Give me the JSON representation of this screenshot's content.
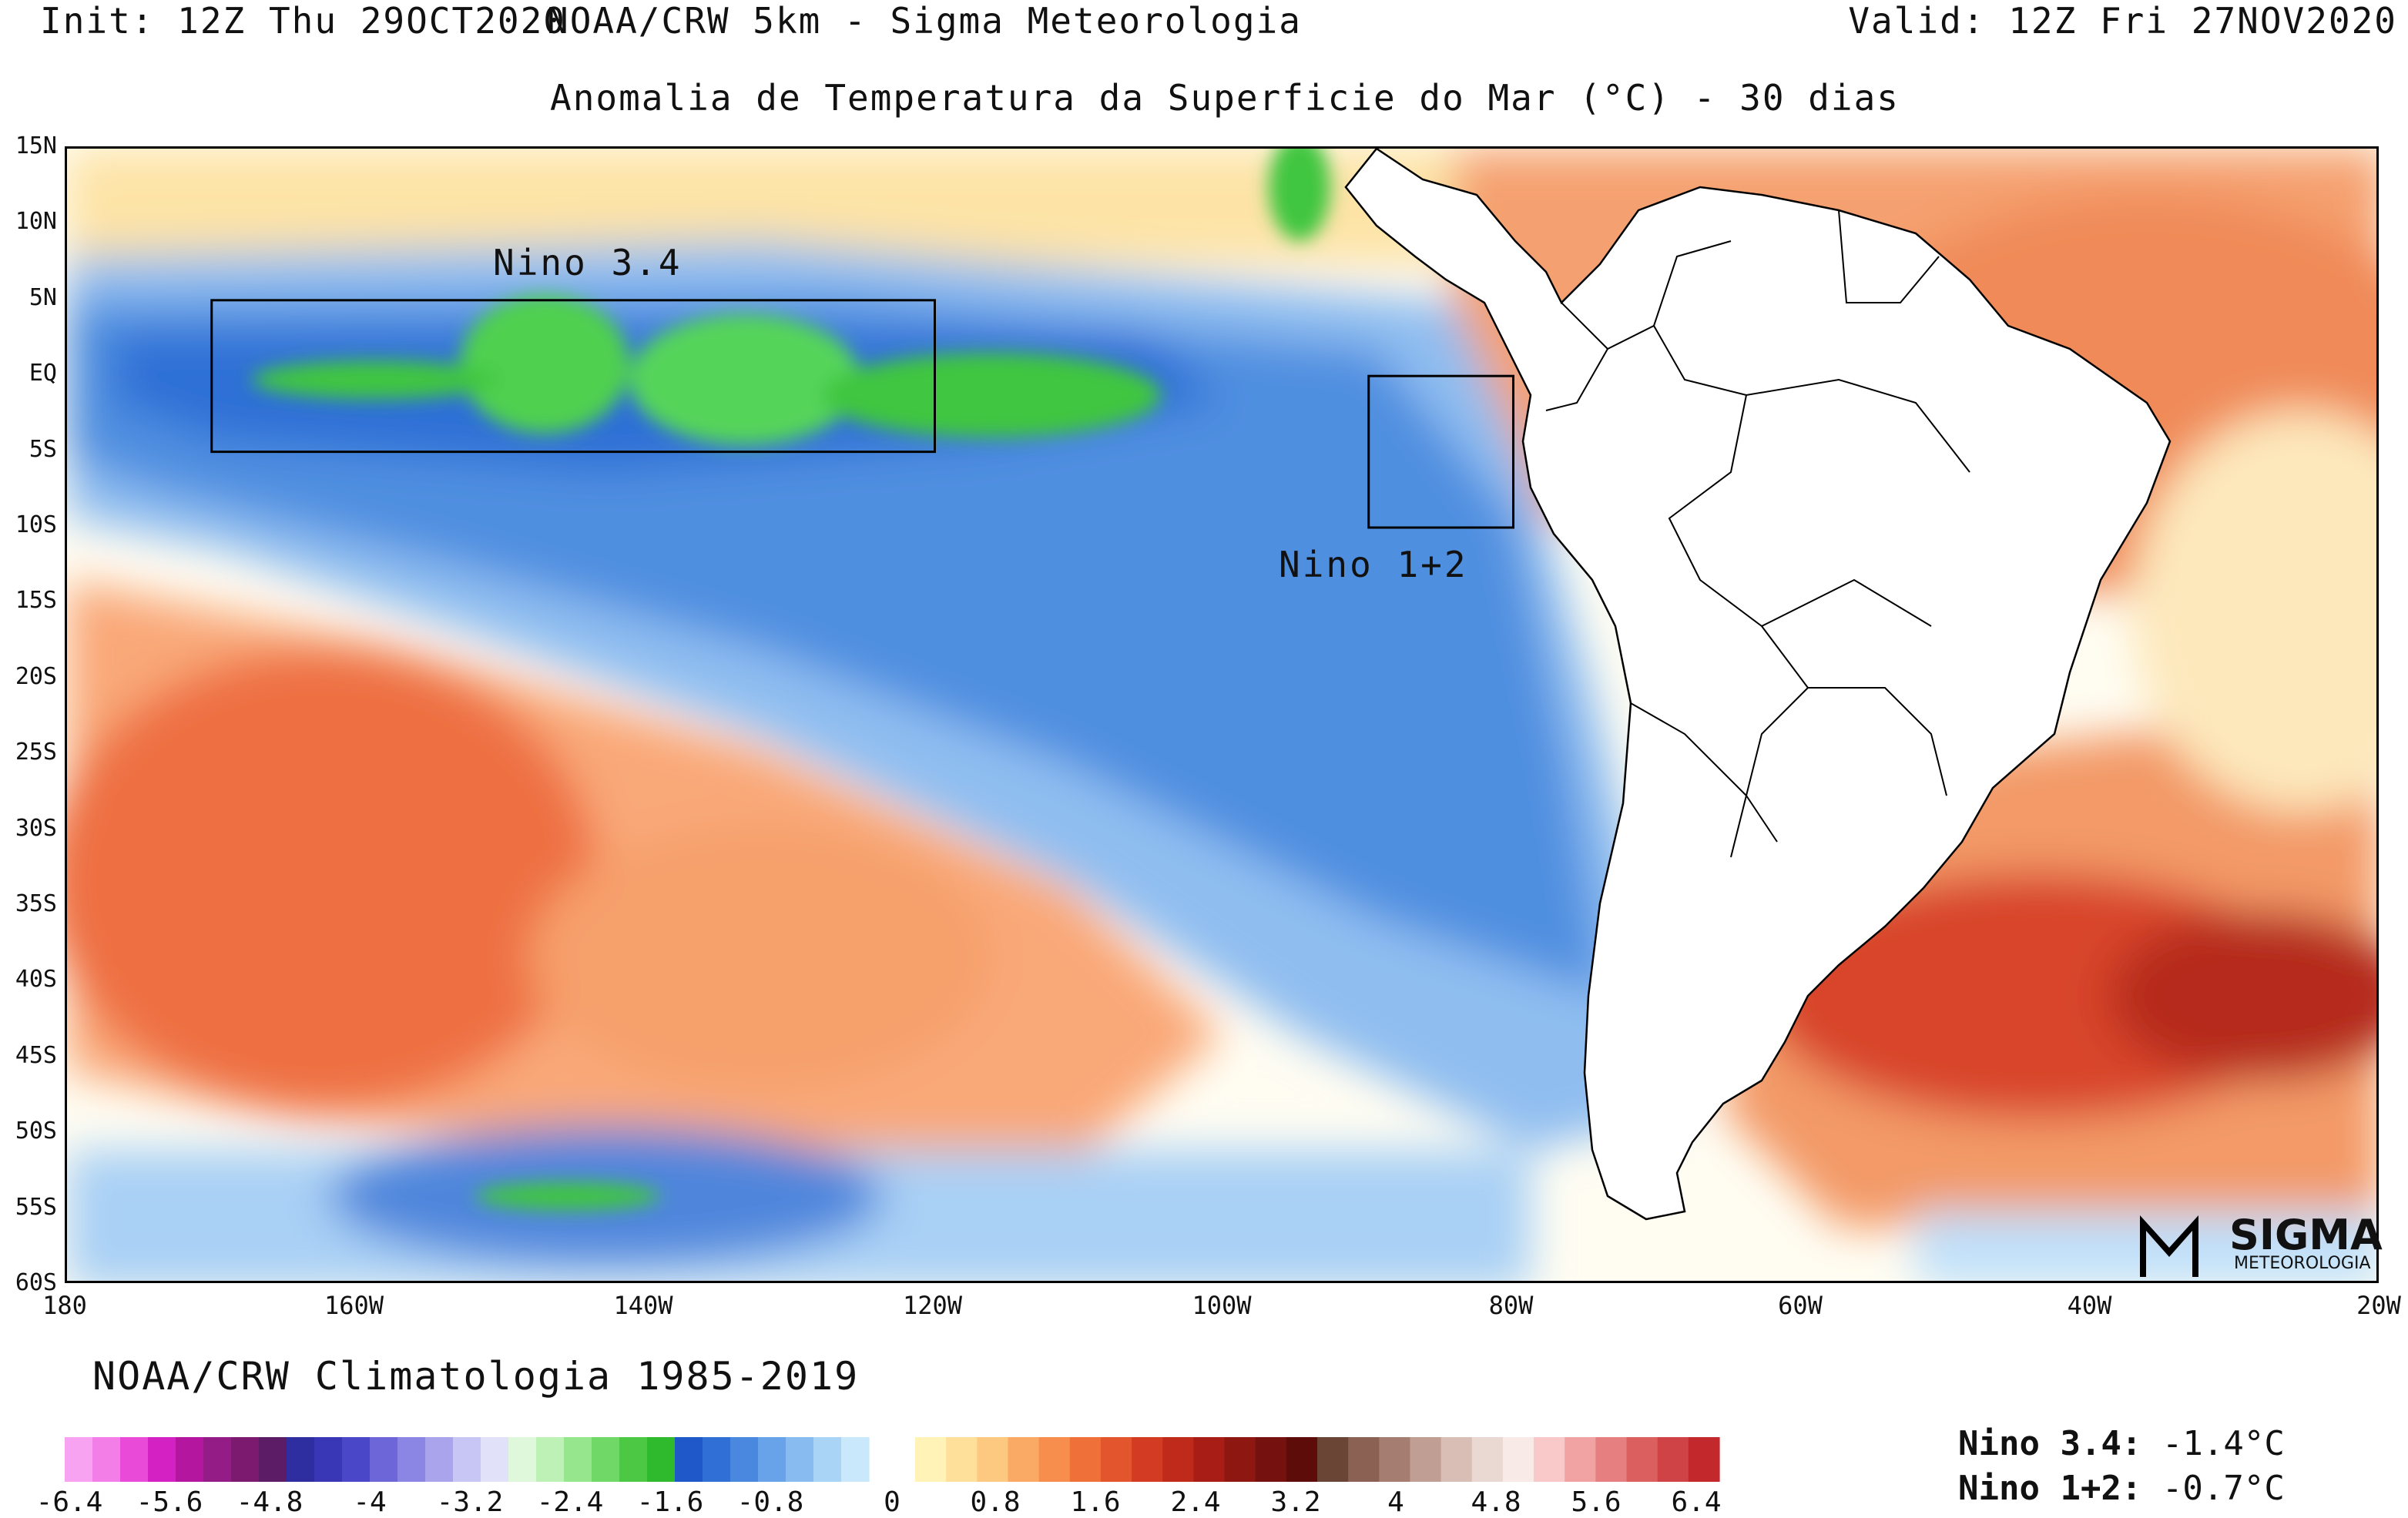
{
  "header": {
    "init": "Init: 12Z Thu 29OCT2020",
    "source": "NOAA/CRW 5km - Sigma Meteorologia",
    "valid": "Valid: 12Z Fri 27NOV2020",
    "subtitle": "Anomalia de Temperatura da Superficie do Mar (°C) - 30 dias"
  },
  "map": {
    "lat_labels": [
      "15N",
      "10N",
      "5N",
      "EQ",
      "5S",
      "10S",
      "15S",
      "20S",
      "25S",
      "30S",
      "35S",
      "40S",
      "45S",
      "50S",
      "55S",
      "60S"
    ],
    "lon_labels": [
      "180",
      "160W",
      "140W",
      "120W",
      "100W",
      "80W",
      "60W",
      "40W",
      "20W"
    ],
    "regions": [
      {
        "name": "Nino 3.4",
        "lon": [
          -170,
          -120
        ],
        "lat": [
          -5,
          5
        ]
      },
      {
        "name": "Nino 1+2",
        "lon": [
          -90,
          -80
        ],
        "lat": [
          -10,
          0
        ]
      }
    ]
  },
  "colorbar": {
    "title": "NOAA/CRW Climatologia 1985-2019",
    "neg_colors": [
      "#f7a3f2",
      "#f47ee8",
      "#e94bd8",
      "#d321c4",
      "#b4169f",
      "#931c86",
      "#7b1a6e",
      "#5d1d66",
      "#2f2ea0",
      "#3a37b6",
      "#4a48c8",
      "#6c66d8",
      "#8b85e3",
      "#a9a4ec",
      "#c8c6f4",
      "#e2e1fa",
      "#dff7da",
      "#bdf1b6",
      "#95e68d",
      "#6fd866",
      "#4cc844",
      "#2fb92d",
      "#1f59c9",
      "#2f6fd6",
      "#4a88e0",
      "#68a2e9",
      "#88bcf0",
      "#a9d4f6",
      "#c9e8fb"
    ],
    "pos_colors": [
      "#fff3b8",
      "#ffe09a",
      "#fdc87f",
      "#fbaa66",
      "#f88e4e",
      "#f0703a",
      "#e3552c",
      "#d33c22",
      "#c02a1b",
      "#a81e17",
      "#8f1712",
      "#75110e",
      "#5e0c0a",
      "#6a4536",
      "#8a6152",
      "#a67e71",
      "#c09e93",
      "#d8beb5",
      "#ead8d2",
      "#f8eae7",
      "#f9c8c8",
      "#f1a3a3",
      "#e67f80",
      "#dc5f60",
      "#cf4346",
      "#c2282c"
    ],
    "neg_ticks": [
      "-6.4",
      "-5.6",
      "-4.8",
      "-4",
      "-3.2",
      "-2.4",
      "-1.6",
      "-0.8",
      "0"
    ],
    "pos_ticks": [
      "0.8",
      "1.6",
      "2.4",
      "3.2",
      "4",
      "4.8",
      "5.6",
      "6.4"
    ]
  },
  "indices": [
    {
      "label": "Nino 3.4:",
      "value": "-1.4°C"
    },
    {
      "label": "Nino 1+2:",
      "value": "-0.7°C"
    }
  ],
  "logo": {
    "word": "SIGMA",
    "sub": "METEOROLOGIA"
  }
}
